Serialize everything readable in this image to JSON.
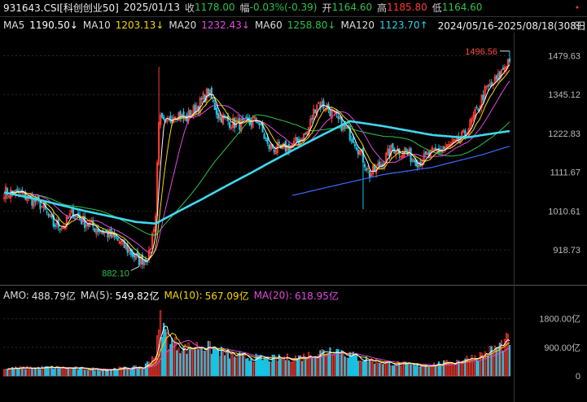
{
  "header": {
    "code": "931643.CSI[科创创业50]",
    "date": "2025/01/13",
    "close_label": "收",
    "close_value": "1178.00",
    "change_label": "幅",
    "change_value": "-0.03%(-0.39)",
    "open_label": "开",
    "open_value": "1164.60",
    "high_label": "高",
    "high_value": "1185.80",
    "low_label": "低",
    "low_value": "1164.60"
  },
  "ma_bar": {
    "items": [
      {
        "label": "MA5",
        "value": "1190.50↓",
        "color": "#ffffff"
      },
      {
        "label": "MA10",
        "value": "1203.13↓",
        "color": "#f5d800"
      },
      {
        "label": "MA20",
        "value": "1232.43↓",
        "color": "#e14adf"
      },
      {
        "label": "MA60",
        "value": "1258.80↓",
        "color": "#2ec24a"
      },
      {
        "label": "MA120",
        "value": "1123.70↑",
        "color": "#29d2e6"
      }
    ],
    "range": "2024/05/16-2025/08/18(308日)"
  },
  "amo_bar": {
    "items": [
      {
        "label": "AMO:",
        "value": "488.79亿",
        "color": "#dddddd"
      },
      {
        "label": "MA(5):",
        "value": "549.82亿",
        "color": "#ffffff"
      },
      {
        "label": "MA(10):",
        "value": "567.09亿",
        "color": "#f5d800"
      },
      {
        "label": "MA(20):",
        "value": "618.95亿",
        "color": "#e14adf"
      }
    ]
  },
  "colors": {
    "up": "#ff3b30",
    "down": "#17c4e6",
    "ma120": "#3ed8ee",
    "ma250": "#3a6bff",
    "ma60": "#2ec24a",
    "ma20": "#e14adf",
    "ma10": "#f5d800",
    "ma5": "#ffffff",
    "grid": "#2a2a2a"
  },
  "chart_data": [
    {
      "type": "candlestick",
      "y_ticks": [
        "1479.63",
        "1345.12",
        "1222.83",
        "1111.67",
        "1010.61",
        "918.73"
      ],
      "y_tick_values": [
        1479.63,
        1345.12,
        1222.83,
        1111.67,
        1010.61,
        918.73
      ],
      "scale": "log",
      "ylim": [
        850,
        1560
      ],
      "annotations": [
        {
          "text": "1496.56",
          "value": 1496.56,
          "index": 307,
          "kind": "high"
        },
        {
          "text": "882.10",
          "value": 882.1,
          "index": 82,
          "kind": "low"
        }
      ],
      "close_knots": [
        [
          0,
          1060
        ],
        [
          10,
          1055
        ],
        [
          22,
          1028
        ],
        [
          30,
          978
        ],
        [
          36,
          975
        ],
        [
          42,
          1008
        ],
        [
          48,
          985
        ],
        [
          58,
          965
        ],
        [
          66,
          950
        ],
        [
          75,
          920
        ],
        [
          82,
          895
        ],
        [
          88,
          905
        ],
        [
          92,
          1000
        ],
        [
          94,
          1270
        ],
        [
          98,
          1245
        ],
        [
          104,
          1290
        ],
        [
          110,
          1265
        ],
        [
          118,
          1310
        ],
        [
          124,
          1355
        ],
        [
          130,
          1280
        ],
        [
          138,
          1255
        ],
        [
          146,
          1250
        ],
        [
          154,
          1265
        ],
        [
          160,
          1185
        ],
        [
          168,
          1175
        ],
        [
          176,
          1190
        ],
        [
          184,
          1225
        ],
        [
          190,
          1320
        ],
        [
          196,
          1305
        ],
        [
          204,
          1255
        ],
        [
          212,
          1210
        ],
        [
          218,
          1150
        ],
        [
          222,
          1105
        ],
        [
          228,
          1130
        ],
        [
          236,
          1180
        ],
        [
          244,
          1165
        ],
        [
          252,
          1140
        ],
        [
          260,
          1165
        ],
        [
          268,
          1180
        ],
        [
          275,
          1195
        ],
        [
          280,
          1220
        ],
        [
          286,
          1280
        ],
        [
          292,
          1355
        ],
        [
          300,
          1400
        ],
        [
          305,
          1455
        ],
        [
          307,
          1470
        ]
      ],
      "ma120_knots": [
        [
          0,
          1058
        ],
        [
          20,
          1040
        ],
        [
          50,
          1010
        ],
        [
          80,
          984
        ],
        [
          92,
          980
        ],
        [
          120,
          1040
        ],
        [
          150,
          1110
        ],
        [
          180,
          1185
        ],
        [
          200,
          1235
        ],
        [
          210,
          1260
        ],
        [
          230,
          1245
        ],
        [
          260,
          1218
        ],
        [
          280,
          1210
        ],
        [
          307,
          1230
        ]
      ],
      "ma250_knots": [
        [
          175,
          1050
        ],
        [
          200,
          1075
        ],
        [
          230,
          1105
        ],
        [
          260,
          1125
        ],
        [
          290,
          1160
        ],
        [
          307,
          1185
        ]
      ]
    },
    {
      "type": "bar",
      "name": "AMO",
      "y_ticks": [
        "1800.00亿",
        "900.00亿",
        "0"
      ],
      "y_tick_values": [
        1800,
        900,
        0
      ],
      "ylim": [
        0,
        2300
      ],
      "amo_knots": [
        [
          0,
          230
        ],
        [
          30,
          260
        ],
        [
          60,
          200
        ],
        [
          85,
          270
        ],
        [
          92,
          700
        ],
        [
          95,
          1720
        ],
        [
          100,
          1100
        ],
        [
          110,
          850
        ],
        [
          120,
          950
        ],
        [
          140,
          620
        ],
        [
          160,
          520
        ],
        [
          180,
          580
        ],
        [
          190,
          700
        ],
        [
          200,
          850
        ],
        [
          215,
          560
        ],
        [
          230,
          430
        ],
        [
          250,
          320
        ],
        [
          270,
          400
        ],
        [
          290,
          650
        ],
        [
          300,
          900
        ],
        [
          307,
          1150
        ]
      ]
    }
  ]
}
